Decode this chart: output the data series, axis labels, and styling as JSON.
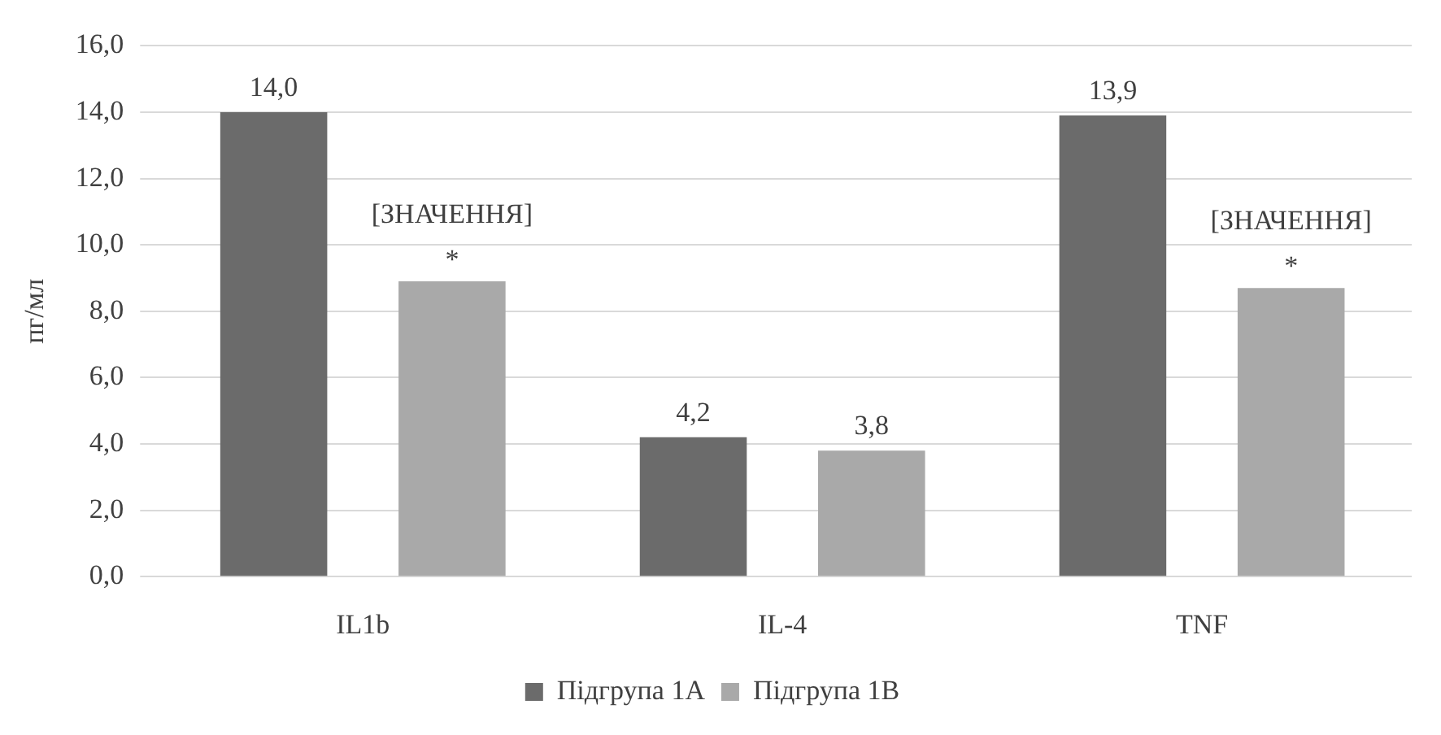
{
  "chart_data": {
    "type": "bar",
    "ylabel": "пг/мл",
    "categories": [
      "IL1b",
      "IL-4",
      "TNF"
    ],
    "series": [
      {
        "name": "Підгрупа 1А",
        "color": "#6b6b6b",
        "values": [
          14.0,
          4.2,
          13.9
        ],
        "value_labels": [
          "14,0",
          "4,2",
          "13,9"
        ]
      },
      {
        "name": "Підгрупа 1В",
        "color": "#a9a9a9",
        "values": [
          8.9,
          3.8,
          8.7
        ],
        "value_labels": [
          "[ЗНАЧЕННЯ]",
          "3,8",
          "[ЗНАЧЕННЯ]"
        ]
      }
    ],
    "ylim": [
      0,
      16
    ],
    "yticks": [
      {
        "value": 0,
        "label": "0,0"
      },
      {
        "value": 2,
        "label": "2,0"
      },
      {
        "value": 4,
        "label": "4,0"
      },
      {
        "value": 6,
        "label": "6,0"
      },
      {
        "value": 8,
        "label": "8,0"
      },
      {
        "value": 10,
        "label": "10,0"
      },
      {
        "value": 12,
        "label": "12,0"
      },
      {
        "value": 14,
        "label": "14,0"
      },
      {
        "value": 16,
        "label": "16,0"
      }
    ],
    "annotations": [
      "*",
      "*"
    ],
    "grid": "y",
    "legend": "bottom"
  }
}
